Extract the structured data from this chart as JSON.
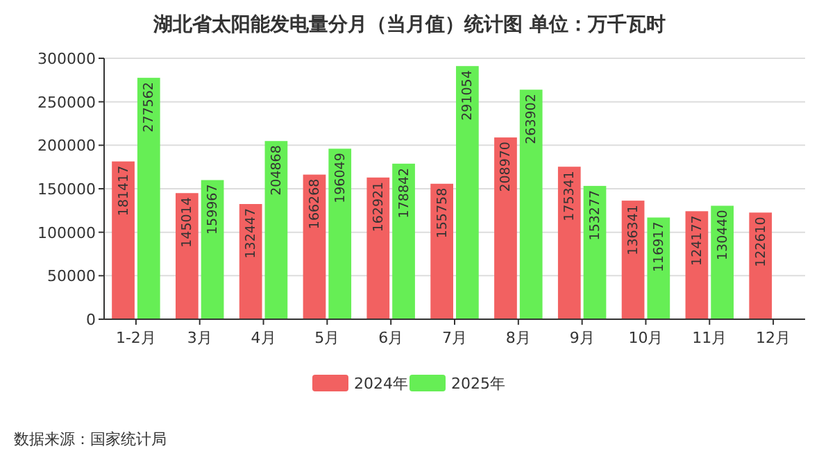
{
  "chart_data": {
    "type": "bar",
    "title": "湖北省太阳能发电量分月（当月值）统计图 单位：万千瓦时",
    "categories": [
      "1-2月",
      "3月",
      "4月",
      "5月",
      "6月",
      "7月",
      "8月",
      "9月",
      "10月",
      "11月",
      "12月"
    ],
    "series": [
      {
        "name": "2024年",
        "color": "#f26161",
        "values": [
          181417,
          145014,
          132447,
          166268,
          162921,
          155758,
          208970,
          175341,
          136341,
          124177,
          122610
        ]
      },
      {
        "name": "2025年",
        "color": "#66ee55",
        "values": [
          277562,
          159967,
          204868,
          196049,
          178842,
          291054,
          263902,
          153277,
          116917,
          130440,
          null
        ]
      }
    ],
    "ylim": [
      0,
      300000
    ],
    "yticks": [
      0,
      50000,
      100000,
      150000,
      200000,
      250000,
      300000
    ],
    "grid": "y",
    "legend": "bottom",
    "data_labels": true,
    "annotations": [
      "数据来源：国家统计局"
    ]
  }
}
